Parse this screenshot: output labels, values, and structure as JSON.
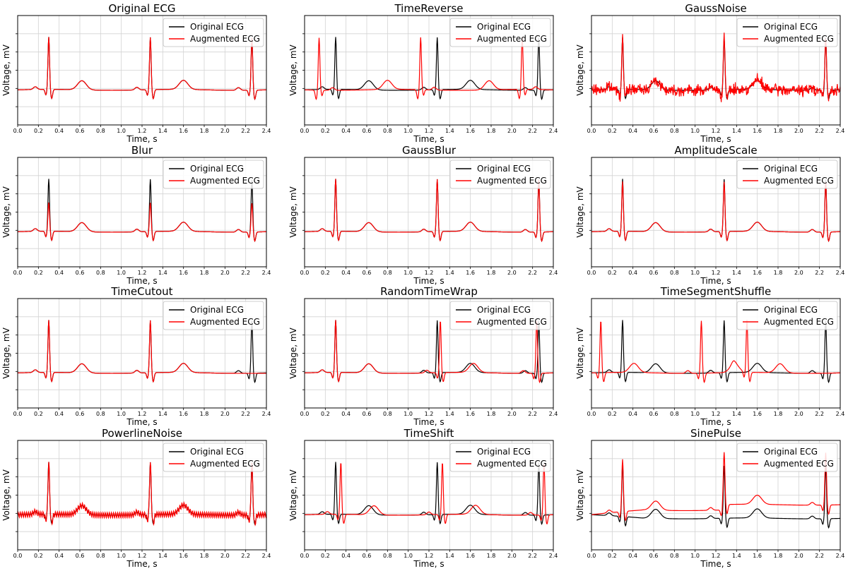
{
  "figure": {
    "background": "#ffffff"
  },
  "colors": {
    "original": "#000000",
    "augmented": "#ff0000",
    "grid": "#d3d3d3",
    "axis": "#000000"
  },
  "shared": {
    "xlabel": "Time, s",
    "ylabel": "Voltage, mV",
    "xlim": [
      0.0,
      2.4
    ],
    "xticks": [
      "0.0",
      "0.2",
      "0.4",
      "0.6",
      "0.8",
      "1.0",
      "1.2",
      "1.4",
      "1.6",
      "1.8",
      "2.0",
      "2.2",
      "2.4"
    ],
    "legend": {
      "placement": "top-right",
      "entries": [
        "Original ECG",
        "Augmented ECG"
      ]
    }
  },
  "chart_data": [
    {
      "type": "line",
      "title": "Original ECG",
      "series": [
        {
          "name": "Original ECG"
        },
        {
          "name": "Augmented ECG"
        }
      ],
      "r_peaks_s": [
        0.3,
        1.28,
        2.26
      ],
      "augmented_r_peaks_s": [
        0.3,
        1.28,
        2.26
      ],
      "grid": true
    },
    {
      "type": "line",
      "title": "TimeReverse",
      "series": [
        {
          "name": "Original ECG"
        },
        {
          "name": "Augmented ECG"
        }
      ],
      "r_peaks_s": [
        0.3,
        1.28,
        2.26
      ],
      "augmented_r_peaks_s": [
        0.14,
        1.12,
        2.1
      ],
      "grid": true
    },
    {
      "type": "line",
      "title": "GaussNoise",
      "series": [
        {
          "name": "Original ECG"
        },
        {
          "name": "Augmented ECG"
        }
      ],
      "r_peaks_s": [
        0.3,
        1.28,
        2.26
      ],
      "augmented_r_peaks_s": [
        0.3,
        1.28,
        2.26
      ],
      "grid": true
    },
    {
      "type": "line",
      "title": "Blur",
      "series": [
        {
          "name": "Original ECG"
        },
        {
          "name": "Augmented ECG"
        }
      ],
      "r_peaks_s": [
        0.3,
        1.28,
        2.26
      ],
      "augmented_r_peaks_s": [
        0.3,
        1.28,
        2.26
      ],
      "grid": true
    },
    {
      "type": "line",
      "title": "GaussBlur",
      "series": [
        {
          "name": "Original ECG"
        },
        {
          "name": "Augmented ECG"
        }
      ],
      "r_peaks_s": [
        0.3,
        1.28,
        2.26
      ],
      "augmented_r_peaks_s": [
        0.3,
        1.28,
        2.26
      ],
      "grid": true
    },
    {
      "type": "line",
      "title": "AmplitudeScale",
      "series": [
        {
          "name": "Original ECG"
        },
        {
          "name": "Augmented ECG"
        }
      ],
      "r_peaks_s": [
        0.3,
        1.28,
        2.26
      ],
      "augmented_r_peaks_s": [
        0.3,
        1.28,
        2.26
      ],
      "grid": true
    },
    {
      "type": "line",
      "title": "TimeCutout",
      "series": [
        {
          "name": "Original ECG"
        },
        {
          "name": "Augmented ECG"
        }
      ],
      "r_peaks_s": [
        0.3,
        1.28,
        2.26
      ],
      "augmented_r_peaks_s": [
        0.3,
        1.28
      ],
      "grid": true
    },
    {
      "type": "line",
      "title": "RandomTimeWrap",
      "series": [
        {
          "name": "Original ECG"
        },
        {
          "name": "Augmented ECG"
        }
      ],
      "r_peaks_s": [
        0.3,
        1.28,
        2.26
      ],
      "augmented_r_peaks_s": [
        0.3,
        1.31,
        2.24
      ],
      "grid": true
    },
    {
      "type": "line",
      "title": "TimeSegmentShuffle",
      "series": [
        {
          "name": "Original ECG"
        },
        {
          "name": "Augmented ECG"
        }
      ],
      "r_peaks_s": [
        0.3,
        1.28,
        2.26
      ],
      "augmented_r_peaks_s": [
        0.09,
        1.06,
        1.5
      ],
      "grid": true
    },
    {
      "type": "line",
      "title": "PowerlineNoise",
      "series": [
        {
          "name": "Original ECG"
        },
        {
          "name": "Augmented ECG"
        }
      ],
      "r_peaks_s": [
        0.3,
        1.28,
        2.26
      ],
      "augmented_r_peaks_s": [
        0.3,
        1.28,
        2.26
      ],
      "grid": true
    },
    {
      "type": "line",
      "title": "TimeShift",
      "series": [
        {
          "name": "Original ECG"
        },
        {
          "name": "Augmented ECG"
        }
      ],
      "r_peaks_s": [
        0.3,
        1.28,
        2.26
      ],
      "augmented_r_peaks_s": [
        0.35,
        1.33,
        2.31
      ],
      "grid": true
    },
    {
      "type": "line",
      "title": "SinePulse",
      "series": [
        {
          "name": "Original ECG"
        },
        {
          "name": "Augmented ECG"
        }
      ],
      "r_peaks_s": [
        0.3,
        1.28,
        2.26
      ],
      "augmented_r_peaks_s": [
        0.3,
        1.28,
        2.26
      ],
      "grid": true
    }
  ]
}
